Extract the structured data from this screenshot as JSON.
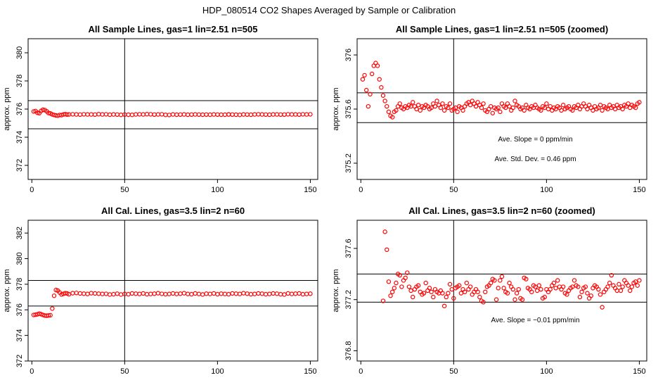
{
  "figure": {
    "title": "HDP_080514  CO2 Shapes Averaged by Sample or Calibration"
  },
  "chart_data": [
    {
      "type": "scatter",
      "title": "All Sample Lines, gas=1 lin=2.51 n=505",
      "xlabel": "",
      "ylabel": "approx. ppm",
      "xlim": [
        -2,
        154
      ],
      "ylim": [
        371,
        381
      ],
      "xticks": [
        0,
        50,
        100,
        150
      ],
      "yticks": [
        372,
        374,
        376,
        378,
        380
      ],
      "hlines": [
        376.6,
        374.6
      ],
      "vline": 50,
      "annotations": [],
      "marker_color": "#ff0000",
      "series": [
        {
          "x": [
            1,
            2,
            3,
            4,
            5,
            6,
            7,
            8,
            9,
            10,
            11,
            12,
            13,
            14,
            15,
            16,
            17,
            18,
            19,
            20,
            22,
            24,
            26,
            28,
            30,
            32,
            34,
            36,
            38,
            40,
            42,
            44,
            46,
            48,
            50,
            52,
            54,
            56,
            58,
            60,
            62,
            64,
            66,
            68,
            70,
            72,
            74,
            76,
            78,
            80,
            82,
            84,
            86,
            88,
            90,
            92,
            94,
            96,
            98,
            100,
            102,
            104,
            106,
            106,
            108,
            110,
            112,
            114,
            116,
            118,
            120,
            122,
            124,
            126,
            128,
            130,
            132,
            134,
            136,
            138,
            140,
            142,
            144,
            146,
            148,
            150
          ],
          "y": [
            375.83,
            375.86,
            375.74,
            375.71,
            375.87,
            375.95,
            375.93,
            375.84,
            375.72,
            375.69,
            375.62,
            375.58,
            375.55,
            375.53,
            375.58,
            375.57,
            375.62,
            375.64,
            375.61,
            375.62,
            375.63,
            375.62,
            375.61,
            375.63,
            375.62,
            375.62,
            375.61,
            375.64,
            375.62,
            375.63,
            375.6,
            375.62,
            375.61,
            375.59,
            375.61,
            375.6,
            375.59,
            375.62,
            375.63,
            375.62,
            375.64,
            375.63,
            375.61,
            375.62,
            375.63,
            375.59,
            375.58,
            375.62,
            375.6,
            375.61,
            375.62,
            375.6,
            375.61,
            375.62,
            375.61,
            375.6,
            375.61,
            375.6,
            375.62,
            375.61,
            375.6,
            375.6,
            375.62,
            375.62,
            375.61,
            375.6,
            375.59,
            375.62,
            375.61,
            375.6,
            375.62,
            375.63,
            375.62,
            375.61,
            375.6,
            375.62,
            375.62,
            375.61,
            375.61,
            375.63,
            375.62,
            375.62,
            375.61,
            375.63,
            375.62,
            375.63
          ]
        }
      ]
    },
    {
      "type": "scatter",
      "title": "All Sample Lines, gas=1 lin=2.51 n=505 (zoomed)",
      "xlabel": "",
      "ylabel": "approx. ppm",
      "xlim": [
        -2,
        154
      ],
      "ylim": [
        375.08,
        376.12
      ],
      "xticks": [
        0,
        50,
        100,
        150
      ],
      "yticks": [
        375.2,
        375.6,
        376.0
      ],
      "hlines": [
        375.72,
        375.5
      ],
      "vline": 50,
      "annotations": [
        "Ave. Slope =  0  ppm/min",
        "Ave. Std. Dev. =  0.46  ppm"
      ],
      "marker_color": "#ff0000",
      "series": [
        {
          "x": [
            1,
            2,
            3,
            4,
            5,
            6,
            7,
            8,
            9,
            10,
            11,
            12,
            13,
            14,
            15,
            16,
            17,
            18,
            19,
            20,
            21,
            22,
            23,
            24,
            25,
            26,
            27,
            28,
            29,
            30,
            31,
            32,
            33,
            34,
            35,
            36,
            37,
            38,
            39,
            40,
            41,
            42,
            43,
            44,
            45,
            46,
            47,
            48,
            49,
            50,
            51,
            52,
            53,
            54,
            55,
            56,
            57,
            58,
            59,
            60,
            61,
            62,
            63,
            64,
            65,
            66,
            67,
            68,
            69,
            70,
            71,
            72,
            73,
            74,
            75,
            76,
            77,
            78,
            79,
            80,
            81,
            82,
            83,
            84,
            85,
            86,
            87,
            88,
            89,
            90,
            91,
            92,
            93,
            94,
            95,
            96,
            97,
            98,
            99,
            100,
            101,
            102,
            103,
            104,
            105,
            106,
            107,
            108,
            109,
            110,
            111,
            112,
            113,
            114,
            115,
            116,
            117,
            118,
            119,
            120,
            121,
            122,
            123,
            124,
            125,
            126,
            127,
            128,
            129,
            130,
            131,
            132,
            133,
            134,
            135,
            136,
            137,
            138,
            139,
            140,
            141,
            142,
            143,
            144,
            145,
            146,
            147,
            148,
            149,
            150
          ],
          "y": [
            375.82,
            375.85,
            375.74,
            375.62,
            375.71,
            375.86,
            375.92,
            375.94,
            375.92,
            375.82,
            375.76,
            375.7,
            375.66,
            375.62,
            375.58,
            375.55,
            375.54,
            375.58,
            375.59,
            375.62,
            375.64,
            375.61,
            375.6,
            375.62,
            375.61,
            375.63,
            375.62,
            375.65,
            375.62,
            375.6,
            375.63,
            375.59,
            375.62,
            375.61,
            375.63,
            375.62,
            375.6,
            375.61,
            375.64,
            375.62,
            375.66,
            375.63,
            375.61,
            375.64,
            375.59,
            375.62,
            375.61,
            375.64,
            375.59,
            375.6,
            375.61,
            375.58,
            375.62,
            375.61,
            375.59,
            375.62,
            375.64,
            375.65,
            375.63,
            375.66,
            375.64,
            375.62,
            375.65,
            375.63,
            375.61,
            375.64,
            375.59,
            375.58,
            375.6,
            375.62,
            375.57,
            375.61,
            375.6,
            375.61,
            375.58,
            375.64,
            375.62,
            375.61,
            375.64,
            375.62,
            375.59,
            375.61,
            375.66,
            375.63,
            375.62,
            375.6,
            375.61,
            375.59,
            375.63,
            375.61,
            375.6,
            375.62,
            375.61,
            375.63,
            375.61,
            375.6,
            375.59,
            375.62,
            375.61,
            375.64,
            375.6,
            375.62,
            375.59,
            375.61,
            375.6,
            375.62,
            375.61,
            375.59,
            375.63,
            375.6,
            375.61,
            375.62,
            375.6,
            375.59,
            375.62,
            375.61,
            375.63,
            375.6,
            375.62,
            375.64,
            375.62,
            375.6,
            375.63,
            375.61,
            375.59,
            375.62,
            375.6,
            375.61,
            375.63,
            375.59,
            375.62,
            375.61,
            375.6,
            375.63,
            375.61,
            375.62,
            375.6,
            375.63,
            375.61,
            375.62,
            375.6,
            375.63,
            375.62,
            375.64,
            375.61,
            375.63,
            375.62,
            375.61,
            375.64,
            375.65
          ]
        }
      ]
    },
    {
      "type": "scatter",
      "title": "All Cal. Lines, gas=3.5 lin=2 n=60",
      "xlabel": "",
      "ylabel": "approx. ppm",
      "xlim": [
        -2,
        154
      ],
      "ylim": [
        372,
        383
      ],
      "xticks": [
        0,
        50,
        100,
        150
      ],
      "yticks": [
        372,
        374,
        376,
        378,
        380,
        382
      ],
      "hlines": [
        378.3,
        376.3
      ],
      "vline": 50,
      "annotations": [],
      "marker_color": "#ff0000",
      "series": [
        {
          "x": [
            1,
            2,
            3,
            4,
            5,
            6,
            7,
            8,
            9,
            10,
            11,
            12,
            13,
            14,
            15,
            16,
            17,
            18,
            19,
            20,
            22,
            24,
            26,
            28,
            30,
            32,
            34,
            36,
            38,
            40,
            42,
            44,
            46,
            48,
            50,
            52,
            54,
            56,
            58,
            60,
            62,
            64,
            66,
            68,
            70,
            72,
            74,
            76,
            78,
            80,
            82,
            84,
            86,
            88,
            90,
            92,
            94,
            96,
            98,
            100,
            102,
            104,
            106,
            108,
            110,
            112,
            114,
            116,
            118,
            120,
            122,
            124,
            126,
            128,
            130,
            132,
            134,
            136,
            138,
            140,
            142,
            144,
            146,
            148,
            150
          ],
          "y": [
            375.6,
            375.62,
            375.65,
            375.7,
            375.66,
            375.6,
            375.55,
            375.54,
            375.56,
            375.58,
            376.1,
            377.1,
            377.55,
            377.5,
            377.35,
            377.2,
            377.25,
            377.3,
            377.28,
            377.22,
            377.3,
            377.32,
            377.28,
            377.26,
            377.24,
            377.3,
            377.28,
            377.26,
            377.24,
            377.25,
            377.2,
            377.22,
            377.26,
            377.2,
            377.24,
            377.22,
            377.28,
            377.26,
            377.24,
            377.28,
            377.22,
            377.24,
            377.26,
            377.3,
            377.25,
            377.22,
            377.24,
            377.28,
            377.24,
            377.26,
            377.3,
            377.24,
            377.22,
            377.28,
            377.24,
            377.2,
            377.26,
            377.24,
            377.28,
            377.22,
            377.26,
            377.24,
            377.22,
            377.28,
            377.26,
            377.24,
            377.3,
            377.26,
            377.22,
            377.24,
            377.28,
            377.26,
            377.22,
            377.24,
            377.28,
            377.26,
            377.22,
            377.2,
            377.28,
            377.24,
            377.26,
            377.28,
            377.22,
            377.24,
            377.26
          ]
        }
      ]
    },
    {
      "type": "scatter",
      "title": "All Cal. Lines, gas=3.5 lin=2 n=60 (zoomed)",
      "xlabel": "",
      "ylabel": "approx. ppm",
      "xlim": [
        -2,
        154
      ],
      "ylim": [
        376.72,
        377.82
      ],
      "xticks": [
        0,
        50,
        100,
        150
      ],
      "yticks": [
        376.8,
        377.2,
        377.6
      ],
      "hlines": [
        377.4,
        377.18
      ],
      "vline": 50,
      "annotations": [
        "Ave. Slope =  −0.01  ppm/min"
      ],
      "marker_color": "#ff0000",
      "series": [
        {
          "x": [
            12,
            13,
            14,
            15,
            16,
            17,
            18,
            19,
            20,
            21,
            22,
            23,
            24,
            25,
            26,
            27,
            28,
            29,
            30,
            31,
            32,
            33,
            34,
            35,
            36,
            37,
            38,
            39,
            40,
            41,
            42,
            43,
            44,
            45,
            46,
            47,
            48,
            49,
            50,
            51,
            52,
            53,
            54,
            55,
            56,
            57,
            58,
            59,
            60,
            61,
            62,
            63,
            64,
            65,
            66,
            67,
            68,
            69,
            70,
            71,
            72,
            73,
            74,
            75,
            76,
            77,
            78,
            79,
            80,
            81,
            82,
            83,
            84,
            85,
            86,
            87,
            88,
            89,
            90,
            91,
            92,
            93,
            94,
            95,
            96,
            97,
            98,
            99,
            100,
            101,
            102,
            103,
            104,
            105,
            106,
            107,
            108,
            109,
            110,
            111,
            112,
            113,
            114,
            115,
            116,
            117,
            118,
            119,
            120,
            121,
            122,
            123,
            124,
            125,
            126,
            127,
            128,
            129,
            130,
            131,
            132,
            133,
            134,
            135,
            136,
            137,
            138,
            139,
            140,
            141,
            142,
            143,
            144,
            145,
            146,
            147,
            148,
            149,
            150
          ],
          "y": [
            377.19,
            377.73,
            377.59,
            377.34,
            377.23,
            377.26,
            377.29,
            377.33,
            377.4,
            377.39,
            377.3,
            377.35,
            377.37,
            377.41,
            377.3,
            377.27,
            377.22,
            377.28,
            377.3,
            377.31,
            377.26,
            377.24,
            377.25,
            377.33,
            377.27,
            377.29,
            377.26,
            377.22,
            377.28,
            377.26,
            377.25,
            377.27,
            377.25,
            377.15,
            377.22,
            377.25,
            377.32,
            377.28,
            377.21,
            377.29,
            377.3,
            377.31,
            377.25,
            377.28,
            377.26,
            377.33,
            377.28,
            377.3,
            377.24,
            377.26,
            377.28,
            377.26,
            377.22,
            377.19,
            377.18,
            377.26,
            377.3,
            377.31,
            377.33,
            377.36,
            377.35,
            377.2,
            377.29,
            377.35,
            377.38,
            377.29,
            377.26,
            377.25,
            377.33,
            377.3,
            377.28,
            377.2,
            377.25,
            377.28,
            377.21,
            377.2,
            377.37,
            377.36,
            377.29,
            377.28,
            377.26,
            377.31,
            377.3,
            377.27,
            377.31,
            377.28,
            377.21,
            377.22,
            377.28,
            377.26,
            377.28,
            377.31,
            377.33,
            377.29,
            377.35,
            377.3,
            377.28,
            377.3,
            377.25,
            377.24,
            377.27,
            377.29,
            377.3,
            377.35,
            377.31,
            377.3,
            377.22,
            377.26,
            377.29,
            377.3,
            377.25,
            377.21,
            377.23,
            377.29,
            377.31,
            377.3,
            377.28,
            377.24,
            377.14,
            377.26,
            377.28,
            377.3,
            377.33,
            377.39,
            377.31,
            377.29,
            377.27,
            377.32,
            377.27,
            377.3,
            377.35,
            377.33,
            377.31,
            377.27,
            377.3,
            377.33,
            377.34,
            377.31,
            377.35
          ]
        }
      ]
    }
  ]
}
